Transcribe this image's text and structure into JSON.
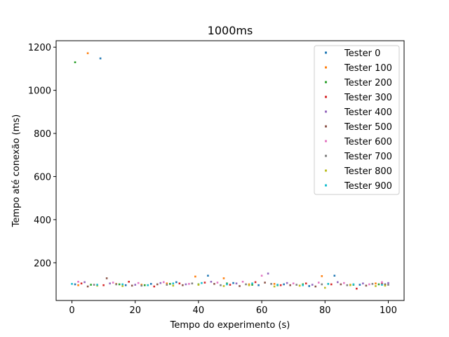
{
  "chart_data": {
    "type": "scatter",
    "title": "1000ms",
    "xlabel": "Tempo do experimento (s)",
    "ylabel": "Tempo até conexão (ms)",
    "xlim": [
      -5,
      105
    ],
    "ylim": [
      25,
      1230
    ],
    "xticks": [
      0,
      20,
      40,
      60,
      80,
      100
    ],
    "yticks": [
      200,
      400,
      600,
      800,
      1000,
      1200
    ],
    "grid": false,
    "legend_position": "top-right",
    "series": [
      {
        "name": "Tester 0",
        "color": "#1f77b4",
        "x": [
          1,
          9,
          17,
          25,
          33,
          43,
          51,
          59,
          67,
          75,
          83,
          91,
          99
        ],
        "y": [
          100,
          1148,
          96,
          102,
          110,
          140,
          106,
          96,
          100,
          92,
          140,
          98,
          100
        ]
      },
      {
        "name": "Tester 100",
        "color": "#ff7f0e",
        "x": [
          2,
          5,
          14,
          22,
          30,
          39,
          48,
          56,
          64,
          72,
          79,
          88,
          96
        ],
        "y": [
          96,
          1172,
          102,
          98,
          104,
          136,
          128,
          100,
          102,
          94,
          138,
          98,
          104
        ]
      },
      {
        "name": "Tester 200",
        "color": "#2ca02c",
        "x": [
          1,
          6,
          15,
          23,
          31,
          40,
          49,
          57,
          65,
          73,
          81,
          89,
          97
        ],
        "y": [
          1130,
          98,
          100,
          96,
          102,
          100,
          104,
          98,
          96,
          100,
          102,
          98,
          100
        ]
      },
      {
        "name": "Tester 300",
        "color": "#d62728",
        "x": [
          3,
          10,
          18,
          26,
          34,
          42,
          50,
          58,
          66,
          74,
          82,
          90,
          98
        ],
        "y": [
          104,
          96,
          112,
          90,
          104,
          108,
          98,
          110,
          96,
          104,
          100,
          80,
          102
        ]
      },
      {
        "name": "Tester 400",
        "color": "#9467bd",
        "x": [
          4,
          12,
          20,
          28,
          36,
          44,
          52,
          62,
          68,
          76,
          84,
          92,
          100
        ],
        "y": [
          110,
          104,
          98,
          106,
          100,
          112,
          104,
          150,
          106,
          98,
          110,
          104,
          106
        ]
      },
      {
        "name": "Tester 500",
        "color": "#8c564b",
        "x": [
          5,
          11,
          19,
          27,
          35,
          45,
          53,
          61,
          69,
          77,
          85,
          93,
          99
        ],
        "y": [
          90,
          128,
          94,
          100,
          96,
          102,
          92,
          108,
          96,
          90,
          100,
          94,
          98
        ]
      },
      {
        "name": "Tester 600",
        "color": "#e377c2",
        "x": [
          2,
          13,
          21,
          29,
          37,
          46,
          54,
          60,
          70,
          78,
          86,
          94,
          98
        ],
        "y": [
          112,
          108,
          106,
          110,
          102,
          108,
          112,
          140,
          104,
          108,
          106,
          100,
          110
        ]
      },
      {
        "name": "Tester 700",
        "color": "#7f7f7f",
        "x": [
          7,
          14,
          22,
          30,
          38,
          47,
          55,
          63,
          71,
          79,
          87,
          95,
          100
        ],
        "y": [
          98,
          100,
          94,
          98,
          104,
          96,
          100,
          102,
          98,
          100,
          96,
          102,
          98
        ]
      },
      {
        "name": "Tester 800",
        "color": "#bcbd22",
        "x": [
          8,
          16,
          24,
          32,
          40,
          48,
          56,
          64,
          72,
          80,
          88,
          96,
          99
        ],
        "y": [
          94,
          92,
          96,
          94,
          98,
          92,
          96,
          90,
          94,
          84,
          96,
          92,
          94
        ]
      },
      {
        "name": "Tester 900",
        "color": "#17becf",
        "x": [
          0,
          8,
          16,
          24,
          32,
          41,
          49,
          57,
          65,
          73,
          81,
          89,
          98
        ],
        "y": [
          102,
          98,
          100,
          96,
          104,
          106,
          100,
          104,
          98,
          96,
          102,
          100,
          98
        ]
      }
    ]
  }
}
